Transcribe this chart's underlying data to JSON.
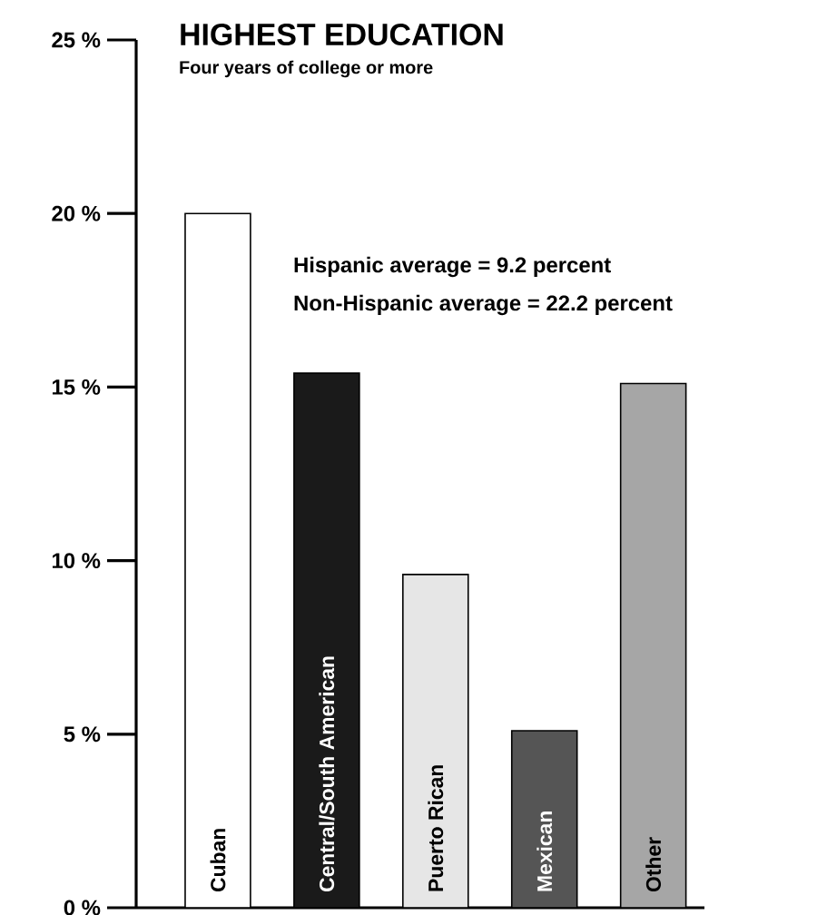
{
  "chart_data": {
    "type": "bar",
    "title": "HIGHEST EDUCATION",
    "subtitle": "Four years of college or more",
    "categories": [
      "Cuban",
      "Central/South American",
      "Puerto Rican",
      "Mexican",
      "Other"
    ],
    "values": [
      20.0,
      15.4,
      9.6,
      5.1,
      15.1
    ],
    "colors": [
      "#ffffff",
      "#1a1a1a",
      "#e6e6e6",
      "#555555",
      "#a6a6a6"
    ],
    "ylim": [
      0,
      25
    ],
    "yticks": [
      {
        "value": 0,
        "label": "0 %"
      },
      {
        "value": 5,
        "label": "5 %"
      },
      {
        "value": 10,
        "label": "10 %"
      },
      {
        "value": 15,
        "label": "15 %"
      },
      {
        "value": 20,
        "label": "20 %"
      },
      {
        "value": 25,
        "label": "25 %"
      }
    ],
    "annotations": [
      "Hispanic average = 9.2 percent",
      "Non-Hispanic average = 22.2 percent"
    ],
    "grid": false
  }
}
